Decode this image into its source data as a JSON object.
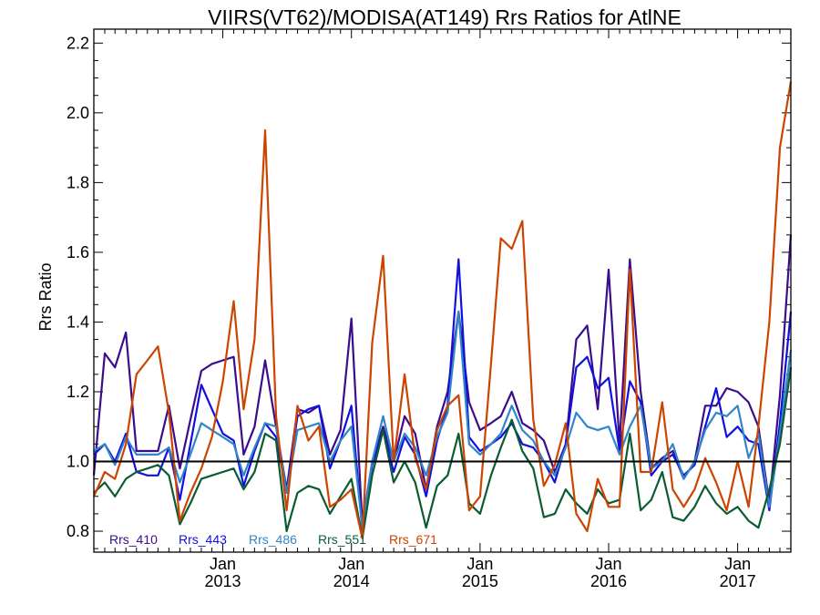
{
  "chart_data": {
    "type": "line",
    "title": "VIIRS(VT62)/MODISA(AT149)  Rrs Ratios for AtlNE",
    "ylabel": "Rrs Ratio",
    "xlabel": "",
    "x_axis_type": "date",
    "xlim": [
      "2012-01-01",
      "2017-06-01"
    ],
    "ylim": [
      0.74,
      2.24
    ],
    "yticks": [
      0.8,
      1.0,
      1.2,
      1.4,
      1.6,
      1.8,
      2.0,
      2.2
    ],
    "ytick_labels": [
      "0.8",
      "1.0",
      "1.2",
      "1.4",
      "1.6",
      "1.8",
      "2.0",
      "2.2"
    ],
    "xticks": [
      {
        "date": "2013-01-01",
        "month": "Jan",
        "year": "2013"
      },
      {
        "date": "2014-01-01",
        "month": "Jan",
        "year": "2014"
      },
      {
        "date": "2015-01-01",
        "month": "Jan",
        "year": "2015"
      },
      {
        "date": "2016-01-01",
        "month": "Jan",
        "year": "2016"
      },
      {
        "date": "2017-01-01",
        "month": "Jan",
        "year": "2017"
      }
    ],
    "reference_line": 1.0,
    "grid": false,
    "legend_position": "bottom-left",
    "x": [
      "2012-01-01",
      "2012-02-01",
      "2012-03-01",
      "2012-04-01",
      "2012-05-01",
      "2012-06-01",
      "2012-07-01",
      "2012-08-01",
      "2012-09-01",
      "2012-10-01",
      "2012-11-01",
      "2012-12-01",
      "2013-01-01",
      "2013-02-01",
      "2013-03-01",
      "2013-04-01",
      "2013-05-01",
      "2013-06-01",
      "2013-07-01",
      "2013-08-01",
      "2013-09-01",
      "2013-10-01",
      "2013-11-01",
      "2013-12-01",
      "2014-01-01",
      "2014-02-01",
      "2014-03-01",
      "2014-04-01",
      "2014-05-01",
      "2014-06-01",
      "2014-07-01",
      "2014-08-01",
      "2014-09-01",
      "2014-10-01",
      "2014-11-01",
      "2014-12-01",
      "2015-01-01",
      "2015-02-01",
      "2015-03-01",
      "2015-04-01",
      "2015-05-01",
      "2015-06-01",
      "2015-07-01",
      "2015-08-01",
      "2015-09-01",
      "2015-10-01",
      "2015-11-01",
      "2015-12-01",
      "2016-01-01",
      "2016-02-01",
      "2016-03-01",
      "2016-04-01",
      "2016-05-01",
      "2016-06-01",
      "2016-07-01",
      "2016-08-01",
      "2016-09-01",
      "2016-10-01",
      "2016-11-01",
      "2016-12-01",
      "2017-01-01",
      "2017-02-01",
      "2017-03-01",
      "2017-04-01",
      "2017-05-01",
      "2017-06-01"
    ],
    "series": [
      {
        "name": "Rrs_410",
        "color": "#3a0d8c",
        "values": [
          0.96,
          1.31,
          1.27,
          1.37,
          1.03,
          1.03,
          1.03,
          1.16,
          0.98,
          1.12,
          1.26,
          1.28,
          1.29,
          1.3,
          1.02,
          1.1,
          1.29,
          1.1,
          0.92,
          1.15,
          1.14,
          1.16,
          1.02,
          1.09,
          1.41,
          0.82,
          1.0,
          1.1,
          1.0,
          1.13,
          1.08,
          0.92,
          1.1,
          1.2,
          1.43,
          1.17,
          1.09,
          1.11,
          1.13,
          1.2,
          1.11,
          1.09,
          1.06,
          0.97,
          1.05,
          1.35,
          1.39,
          1.15,
          1.55,
          1.05,
          1.58,
          1.2,
          0.98,
          1.01,
          1.03,
          0.95,
          1.0,
          1.16,
          1.16,
          1.21,
          1.2,
          1.17,
          1.1,
          0.88,
          1.19,
          1.65
        ]
      },
      {
        "name": "Rrs_443",
        "color": "#1010e0",
        "values": [
          1.02,
          1.05,
          1.0,
          1.08,
          0.97,
          0.96,
          0.96,
          1.04,
          0.89,
          1.05,
          1.22,
          1.15,
          1.08,
          1.06,
          0.93,
          1.03,
          1.11,
          1.07,
          0.91,
          1.13,
          1.15,
          1.16,
          0.98,
          1.06,
          1.16,
          0.8,
          0.99,
          1.09,
          0.97,
          1.07,
          1.02,
          0.9,
          1.06,
          1.16,
          1.58,
          1.07,
          1.03,
          1.05,
          1.07,
          1.11,
          1.05,
          1.04,
          1.0,
          0.94,
          1.05,
          1.27,
          1.3,
          1.21,
          1.24,
          1.03,
          1.23,
          1.17,
          0.96,
          1.0,
          1.02,
          0.96,
          0.99,
          1.1,
          1.21,
          1.07,
          1.1,
          1.06,
          1.05,
          0.86,
          1.11,
          1.43
        ]
      },
      {
        "name": "Rrs_486",
        "color": "#2f86c8",
        "values": [
          1.03,
          1.05,
          0.99,
          1.07,
          1.02,
          1.02,
          1.02,
          1.04,
          0.94,
          1.02,
          1.11,
          1.09,
          1.07,
          1.05,
          0.96,
          1.04,
          1.11,
          1.1,
          0.91,
          1.09,
          1.1,
          1.11,
          1.0,
          1.06,
          1.1,
          0.81,
          1.0,
          1.13,
          1.0,
          1.08,
          1.04,
          0.96,
          1.07,
          1.14,
          1.43,
          1.05,
          1.02,
          1.05,
          1.08,
          1.16,
          1.09,
          1.06,
          1.0,
          0.96,
          1.04,
          1.14,
          1.1,
          1.09,
          1.1,
          1.02,
          1.1,
          1.16,
          0.98,
          1.0,
          1.05,
          0.95,
          1.0,
          1.09,
          1.14,
          1.13,
          1.16,
          1.01,
          1.08,
          0.87,
          1.08,
          1.32
        ]
      },
      {
        "name": "Rrs_551",
        "color": "#0a5c32",
        "values": [
          0.91,
          0.94,
          0.9,
          0.95,
          0.97,
          0.98,
          0.99,
          0.96,
          0.82,
          0.88,
          0.95,
          0.96,
          0.97,
          0.98,
          0.92,
          0.97,
          1.08,
          1.06,
          0.8,
          0.91,
          0.93,
          0.92,
          0.85,
          0.9,
          0.95,
          0.78,
          0.96,
          1.09,
          0.94,
          1.0,
          0.94,
          0.81,
          0.93,
          0.96,
          1.08,
          0.88,
          0.85,
          0.96,
          1.04,
          1.12,
          1.03,
          0.98,
          0.84,
          0.85,
          0.92,
          0.88,
          0.85,
          0.92,
          0.88,
          0.89,
          1.08,
          0.86,
          0.89,
          0.97,
          0.84,
          0.83,
          0.87,
          0.93,
          0.88,
          0.85,
          0.87,
          0.83,
          0.81,
          0.92,
          1.05,
          1.27
        ]
      },
      {
        "name": "Rrs_671",
        "color": "#cc4400",
        "values": [
          0.9,
          0.97,
          0.95,
          1.05,
          1.25,
          1.29,
          1.33,
          1.14,
          0.83,
          0.91,
          0.98,
          1.07,
          1.23,
          1.46,
          1.15,
          1.35,
          1.95,
          1.13,
          0.86,
          1.16,
          1.06,
          1.1,
          0.87,
          0.89,
          0.92,
          0.78,
          1.34,
          1.59,
          1.0,
          1.25,
          1.01,
          0.92,
          1.09,
          1.16,
          1.19,
          0.86,
          0.9,
          1.28,
          1.64,
          1.61,
          1.69,
          1.12,
          0.93,
          0.99,
          1.11,
          0.85,
          0.8,
          0.95,
          0.87,
          0.87,
          1.55,
          0.97,
          0.97,
          1.17,
          0.92,
          0.87,
          0.92,
          1.01,
          0.94,
          0.86,
          1.0,
          0.87,
          1.1,
          1.4,
          1.9,
          2.09
        ]
      }
    ]
  }
}
